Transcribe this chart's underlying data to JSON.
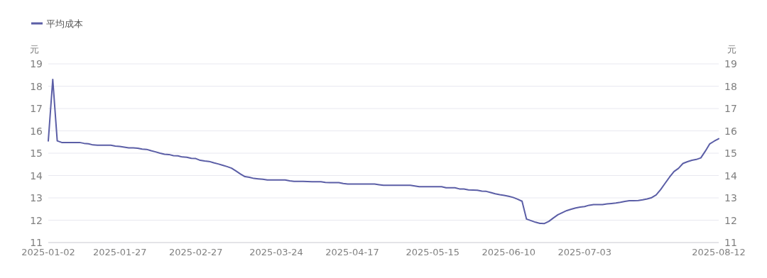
{
  "chart_data": {
    "type": "line",
    "categories": [
      "2025-01-02",
      null,
      null,
      null,
      null,
      null,
      null,
      null,
      null,
      null,
      null,
      null,
      null,
      null,
      null,
      null,
      "2025-01-27",
      null,
      null,
      null,
      null,
      null,
      null,
      null,
      null,
      null,
      null,
      null,
      null,
      null,
      null,
      null,
      null,
      "2025-02-27",
      null,
      null,
      null,
      null,
      null,
      null,
      null,
      null,
      null,
      null,
      null,
      null,
      null,
      null,
      null,
      null,
      null,
      "2025-03-24",
      null,
      null,
      null,
      null,
      null,
      null,
      null,
      null,
      null,
      null,
      null,
      null,
      null,
      null,
      null,
      null,
      "2025-04-17",
      null,
      null,
      null,
      null,
      null,
      null,
      null,
      null,
      null,
      null,
      null,
      null,
      null,
      null,
      null,
      null,
      null,
      "2025-05-15",
      null,
      null,
      null,
      null,
      null,
      null,
      null,
      null,
      null,
      null,
      null,
      null,
      null,
      null,
      null,
      null,
      "2025-06-10",
      null,
      null,
      null,
      null,
      null,
      null,
      null,
      null,
      null,
      null,
      null,
      null,
      null,
      null,
      null,
      null,
      "2025-07-03",
      null,
      null,
      null,
      null,
      null,
      null,
      null,
      null,
      null,
      null,
      null,
      null,
      null,
      null,
      null,
      null,
      null,
      null,
      null,
      null,
      null,
      null,
      null,
      null,
      null,
      null,
      null,
      null,
      null,
      "2025-08-12"
    ],
    "series": [
      {
        "name": "平均成本",
        "color": "#5b5ea6",
        "values": [
          15.55,
          18.3,
          15.55,
          15.48,
          15.48,
          15.48,
          15.48,
          15.48,
          15.44,
          15.42,
          15.37,
          15.36,
          15.36,
          15.36,
          15.36,
          15.32,
          15.3,
          15.27,
          15.24,
          15.24,
          15.22,
          15.18,
          15.17,
          15.11,
          15.06,
          15.0,
          14.95,
          14.94,
          14.89,
          14.88,
          14.83,
          14.82,
          14.77,
          14.76,
          14.68,
          14.65,
          14.63,
          14.57,
          14.52,
          14.46,
          14.4,
          14.33,
          14.2,
          14.07,
          13.95,
          13.92,
          13.87,
          13.85,
          13.83,
          13.8,
          13.8,
          13.8,
          13.8,
          13.8,
          13.76,
          13.74,
          13.74,
          13.74,
          13.73,
          13.72,
          13.72,
          13.72,
          13.69,
          13.68,
          13.68,
          13.68,
          13.64,
          13.62,
          13.62,
          13.62,
          13.62,
          13.62,
          13.62,
          13.62,
          13.59,
          13.56,
          13.56,
          13.56,
          13.56,
          13.56,
          13.56,
          13.56,
          13.53,
          13.5,
          13.5,
          13.5,
          13.5,
          13.5,
          13.5,
          13.45,
          13.45,
          13.45,
          13.4,
          13.4,
          13.36,
          13.35,
          13.34,
          13.3,
          13.29,
          13.24,
          13.18,
          13.14,
          13.11,
          13.07,
          13.02,
          12.94,
          12.85,
          12.05,
          11.98,
          11.91,
          11.86,
          11.85,
          11.95,
          12.1,
          12.24,
          12.34,
          12.43,
          12.49,
          12.55,
          12.59,
          12.61,
          12.67,
          12.7,
          12.7,
          12.7,
          12.73,
          12.75,
          12.77,
          12.8,
          12.84,
          12.87,
          12.87,
          12.88,
          12.91,
          12.95,
          13.01,
          13.13,
          13.37,
          13.65,
          13.93,
          14.18,
          14.32,
          14.54,
          14.62,
          14.68,
          14.72,
          14.79,
          15.09,
          15.42,
          15.54,
          15.65
        ]
      }
    ],
    "ylabel": "元",
    "y2label": "元",
    "ylim": [
      11,
      19
    ],
    "yticks": [
      11,
      12,
      13,
      14,
      15,
      16,
      17,
      18,
      19
    ],
    "y2lim": [
      11,
      19
    ],
    "y2ticks": [
      11,
      12,
      13,
      14,
      15,
      16,
      17,
      18,
      19
    ],
    "grid": "y",
    "legend": "top left"
  }
}
